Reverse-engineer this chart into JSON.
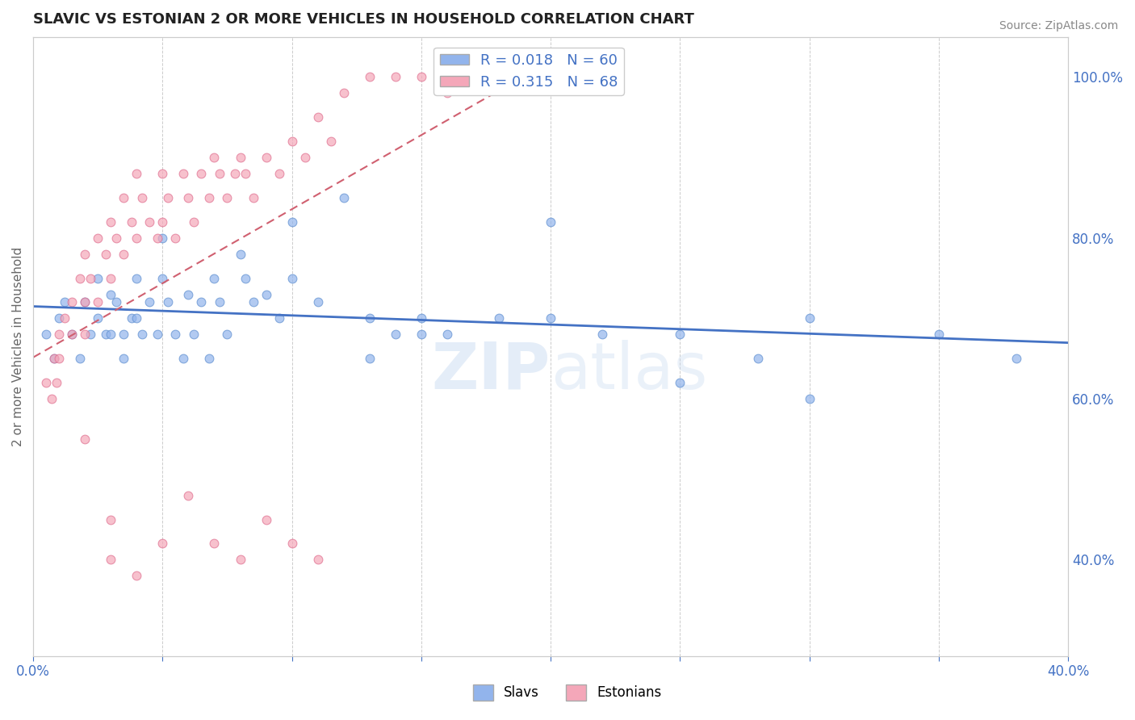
{
  "title": "SLAVIC VS ESTONIAN 2 OR MORE VEHICLES IN HOUSEHOLD CORRELATION CHART",
  "source": "Source: ZipAtlas.com",
  "ylabel": "2 or more Vehicles in Household",
  "xlim": [
    0.0,
    0.4
  ],
  "ylim": [
    0.28,
    1.05
  ],
  "slavs_color": "#92b4ec",
  "slavs_edge_color": "#6090d0",
  "estonians_color": "#f4a7b9",
  "estonians_edge_color": "#e07090",
  "slavs_line_color": "#4472c4",
  "estonians_line_color": "#d06070",
  "background_color": "#ffffff",
  "grid_color": "#cccccc",
  "R_slavs": 0.018,
  "N_slavs": 60,
  "R_estonians": 0.315,
  "N_estonians": 68,
  "slavs_x": [
    0.005,
    0.008,
    0.01,
    0.012,
    0.015,
    0.018,
    0.02,
    0.022,
    0.025,
    0.025,
    0.028,
    0.03,
    0.03,
    0.032,
    0.035,
    0.035,
    0.038,
    0.04,
    0.04,
    0.042,
    0.045,
    0.048,
    0.05,
    0.05,
    0.052,
    0.055,
    0.058,
    0.06,
    0.062,
    0.065,
    0.068,
    0.07,
    0.072,
    0.075,
    0.08,
    0.082,
    0.085,
    0.09,
    0.095,
    0.1,
    0.1,
    0.11,
    0.12,
    0.13,
    0.14,
    0.15,
    0.16,
    0.18,
    0.2,
    0.22,
    0.13,
    0.15,
    0.2,
    0.25,
    0.28,
    0.3,
    0.35,
    0.38,
    0.25,
    0.3
  ],
  "slavs_y": [
    0.68,
    0.65,
    0.7,
    0.72,
    0.68,
    0.65,
    0.72,
    0.68,
    0.75,
    0.7,
    0.68,
    0.73,
    0.68,
    0.72,
    0.68,
    0.65,
    0.7,
    0.75,
    0.7,
    0.68,
    0.72,
    0.68,
    0.8,
    0.75,
    0.72,
    0.68,
    0.65,
    0.73,
    0.68,
    0.72,
    0.65,
    0.75,
    0.72,
    0.68,
    0.78,
    0.75,
    0.72,
    0.73,
    0.7,
    0.82,
    0.75,
    0.72,
    0.85,
    0.7,
    0.68,
    0.7,
    0.68,
    0.7,
    0.82,
    0.68,
    0.65,
    0.68,
    0.7,
    0.68,
    0.65,
    0.7,
    0.68,
    0.65,
    0.62,
    0.6
  ],
  "estonians_x": [
    0.005,
    0.007,
    0.008,
    0.009,
    0.01,
    0.01,
    0.012,
    0.015,
    0.015,
    0.018,
    0.02,
    0.02,
    0.02,
    0.022,
    0.025,
    0.025,
    0.028,
    0.03,
    0.03,
    0.032,
    0.035,
    0.035,
    0.038,
    0.04,
    0.04,
    0.042,
    0.045,
    0.048,
    0.05,
    0.05,
    0.052,
    0.055,
    0.058,
    0.06,
    0.062,
    0.065,
    0.068,
    0.07,
    0.072,
    0.075,
    0.078,
    0.08,
    0.082,
    0.085,
    0.09,
    0.095,
    0.1,
    0.105,
    0.11,
    0.115,
    0.12,
    0.13,
    0.14,
    0.15,
    0.16,
    0.17,
    0.18,
    0.02,
    0.03,
    0.03,
    0.04,
    0.05,
    0.06,
    0.07,
    0.08,
    0.09,
    0.1,
    0.11
  ],
  "estonians_y": [
    0.62,
    0.6,
    0.65,
    0.62,
    0.68,
    0.65,
    0.7,
    0.72,
    0.68,
    0.75,
    0.78,
    0.72,
    0.68,
    0.75,
    0.8,
    0.72,
    0.78,
    0.82,
    0.75,
    0.8,
    0.85,
    0.78,
    0.82,
    0.88,
    0.8,
    0.85,
    0.82,
    0.8,
    0.88,
    0.82,
    0.85,
    0.8,
    0.88,
    0.85,
    0.82,
    0.88,
    0.85,
    0.9,
    0.88,
    0.85,
    0.88,
    0.9,
    0.88,
    0.85,
    0.9,
    0.88,
    0.92,
    0.9,
    0.95,
    0.92,
    0.98,
    1.0,
    1.0,
    1.0,
    0.98,
    1.0,
    1.0,
    0.55,
    0.45,
    0.4,
    0.38,
    0.42,
    0.48,
    0.42,
    0.4,
    0.45,
    0.42,
    0.4
  ]
}
